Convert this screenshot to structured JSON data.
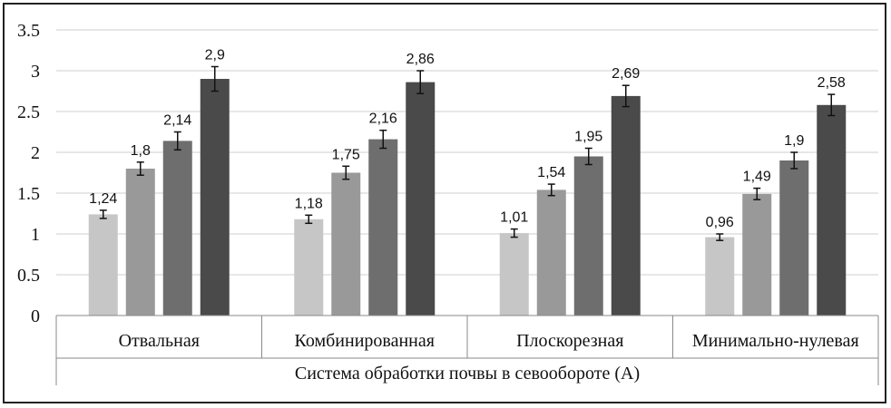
{
  "chart_data": {
    "type": "bar",
    "title": "",
    "xlabel": "Система обработки почвы в севообороте (А)",
    "ylabel": "",
    "ylim": [
      0,
      3.5
    ],
    "yticks": [
      "0",
      "0.5",
      "1",
      "1.5",
      "2",
      "2.5",
      "3",
      "3.5"
    ],
    "grid": true,
    "legend": "none",
    "categories": [
      "Отвальная",
      "Комбинированная",
      "Плоскорезная",
      "Минимально-нулевая"
    ],
    "series": [
      {
        "color": "#c6c6c6",
        "values": [
          1.24,
          1.18,
          1.01,
          0.96
        ],
        "labels": [
          "1,24",
          "1,18",
          "1,01",
          "0,96"
        ],
        "errors": [
          0.05,
          0.05,
          0.05,
          0.04
        ]
      },
      {
        "color": "#999999",
        "values": [
          1.8,
          1.75,
          1.54,
          1.49
        ],
        "labels": [
          "1,8",
          "1,75",
          "1,54",
          "1,49"
        ],
        "errors": [
          0.08,
          0.08,
          0.07,
          0.07
        ]
      },
      {
        "color": "#6e6e6e",
        "values": [
          2.14,
          2.16,
          1.95,
          1.9
        ],
        "labels": [
          "2,14",
          "2,16",
          "1,95",
          "1,9"
        ],
        "errors": [
          0.11,
          0.11,
          0.1,
          0.1
        ]
      },
      {
        "color": "#4a4a4a",
        "values": [
          2.9,
          2.86,
          2.69,
          2.58
        ],
        "labels": [
          "2,9",
          "2,86",
          "2,69",
          "2,58"
        ],
        "errors": [
          0.15,
          0.14,
          0.13,
          0.13
        ]
      }
    ]
  }
}
